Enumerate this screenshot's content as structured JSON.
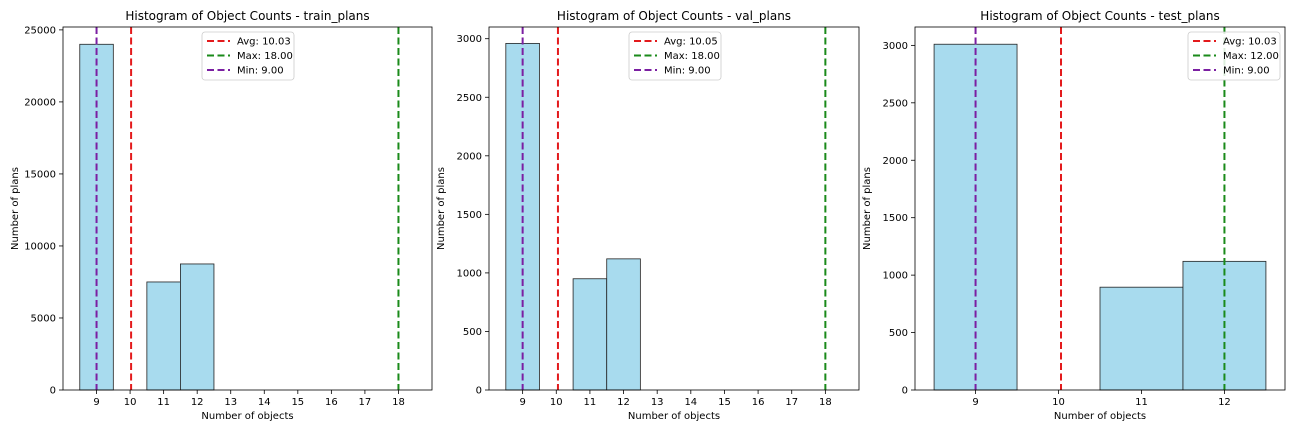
{
  "chart_data": [
    {
      "type": "bar",
      "title": "Histogram of Object Counts - train_plans",
      "xlabel": "Number of objects",
      "ylabel": "Number of plans",
      "xlim": [
        8.0,
        19.0
      ],
      "ylim": [
        0,
        25200
      ],
      "yticks": [
        0,
        5000,
        10000,
        15000,
        20000,
        25000
      ],
      "xticks": [
        "9",
        "10",
        "11",
        "12",
        "13",
        "14",
        "15",
        "16",
        "17",
        "18"
      ],
      "bars": [
        {
          "x0": 8.5,
          "x1": 9.5,
          "value": 24000
        },
        {
          "x0": 10.5,
          "x1": 11.5,
          "value": 7500
        },
        {
          "x0": 11.5,
          "x1": 12.5,
          "value": 8750
        }
      ],
      "reference_lines": [
        {
          "label": "Avg: 10.03",
          "x": 10.03,
          "color": "#e31a1c"
        },
        {
          "label": "Max: 18.00",
          "x": 18.0,
          "color": "#1a8a1a"
        },
        {
          "label": "Min: 9.00",
          "x": 9.0,
          "color": "#7b1fa2"
        }
      ],
      "legend_position": "upper-center",
      "grid": false,
      "bar_color": "#a8dbee"
    },
    {
      "type": "bar",
      "title": "Histogram of Object Counts - val_plans",
      "xlabel": "Number of objects",
      "ylabel": "Number of plans",
      "xlim": [
        8.0,
        19.0
      ],
      "ylim": [
        0,
        3100
      ],
      "yticks": [
        0,
        500,
        1000,
        1500,
        2000,
        2500,
        3000
      ],
      "xticks": [
        "9",
        "10",
        "11",
        "12",
        "13",
        "14",
        "15",
        "16",
        "17",
        "18"
      ],
      "bars": [
        {
          "x0": 8.5,
          "x1": 9.5,
          "value": 2960
        },
        {
          "x0": 10.5,
          "x1": 11.5,
          "value": 950
        },
        {
          "x0": 11.5,
          "x1": 12.5,
          "value": 1120
        }
      ],
      "reference_lines": [
        {
          "label": "Avg: 10.05",
          "x": 10.05,
          "color": "#e31a1c"
        },
        {
          "label": "Max: 18.00",
          "x": 18.0,
          "color": "#1a8a1a"
        },
        {
          "label": "Min: 9.00",
          "x": 9.0,
          "color": "#7b1fa2"
        }
      ],
      "legend_position": "upper-center",
      "grid": false,
      "bar_color": "#a8dbee"
    },
    {
      "type": "bar",
      "title": "Histogram of Object Counts - test_plans",
      "xlabel": "Number of objects",
      "ylabel": "Number of plans",
      "xlim": [
        8.27,
        12.73
      ],
      "ylim": [
        0,
        3160
      ],
      "yticks": [
        0,
        500,
        1000,
        1500,
        2000,
        2500,
        3000
      ],
      "xticks": [
        "9",
        "10",
        "11",
        "12"
      ],
      "bars": [
        {
          "x0": 8.5,
          "x1": 9.5,
          "value": 3010
        },
        {
          "x0": 10.5,
          "x1": 11.5,
          "value": 895
        },
        {
          "x0": 11.5,
          "x1": 12.5,
          "value": 1120
        }
      ],
      "reference_lines": [
        {
          "label": "Avg: 10.03",
          "x": 10.03,
          "color": "#e31a1c"
        },
        {
          "label": "Max: 12.00",
          "x": 12.0,
          "color": "#1a8a1a"
        },
        {
          "label": "Min: 9.00",
          "x": 9.0,
          "color": "#7b1fa2"
        }
      ],
      "legend_position": "upper-right",
      "grid": false,
      "bar_color": "#a8dbee"
    }
  ]
}
